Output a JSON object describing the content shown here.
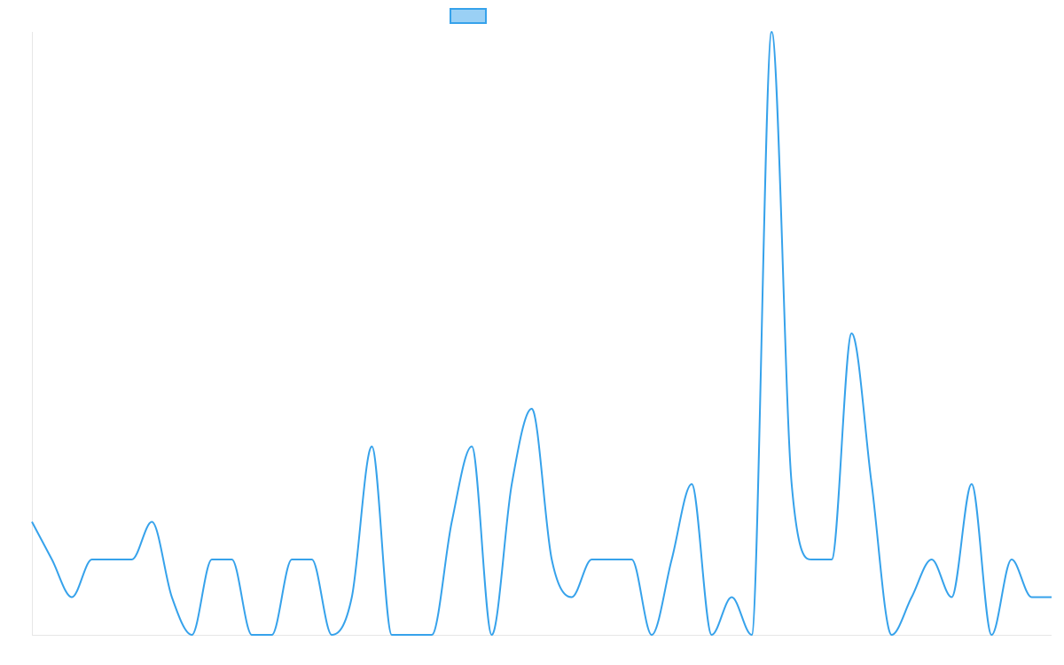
{
  "chart_data": {
    "type": "line",
    "title": "",
    "xlabel": "",
    "ylabel": "",
    "x": [
      0,
      1,
      2,
      3,
      4,
      5,
      6,
      7,
      8,
      9,
      10,
      11,
      12,
      13,
      14,
      15,
      16,
      17,
      18,
      19,
      20,
      21,
      22,
      23,
      24,
      25,
      26,
      27,
      28,
      29,
      30,
      31,
      32,
      33,
      34,
      35,
      36,
      37,
      38,
      39,
      40,
      41,
      42,
      43,
      44,
      45,
      46,
      47,
      48,
      49,
      50,
      51
    ],
    "ylim": [
      0,
      16
    ],
    "series": [
      {
        "name": "",
        "color": "#36a2eb",
        "fill": "#9ad0f5",
        "values": [
          3,
          2,
          1,
          2,
          2,
          2,
          3,
          1,
          0,
          2,
          2,
          0,
          0,
          2,
          2,
          0,
          1,
          5,
          0,
          0,
          0,
          3,
          5,
          0,
          4,
          6,
          2,
          1,
          2,
          2,
          2,
          0,
          2,
          4,
          0,
          1,
          0,
          16,
          4,
          2,
          2,
          8,
          4,
          0,
          1,
          2,
          1,
          4,
          0,
          2,
          1,
          1
        ]
      }
    ],
    "legend": {
      "position": "top",
      "items": [
        {
          "label": "",
          "fill": "#9ad0f5",
          "stroke": "#36a2eb"
        }
      ]
    },
    "grid": false
  }
}
